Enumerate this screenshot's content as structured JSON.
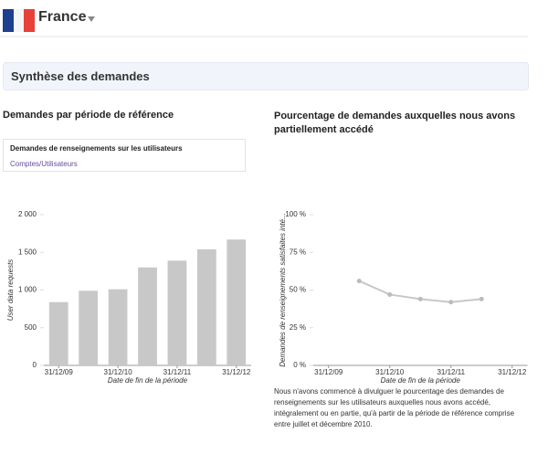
{
  "header": {
    "country": "France"
  },
  "section_title": "Synthèse des demandes",
  "chart_data": [
    {
      "type": "bar",
      "title": "Demandes par période de référence",
      "selector": {
        "title": "Demandes de renseignements sur les utilisateurs",
        "link": "Comptes/Utilisateurs"
      },
      "y_label": "User data requests",
      "x_label": "Date de fin de la période",
      "categories": [
        "31/12/09",
        null,
        "31/12/10",
        null,
        "31/12/11",
        null,
        "31/12/12"
      ],
      "values": [
        840,
        990,
        1010,
        1300,
        1390,
        1540,
        1670
      ],
      "color": "#c8c8c8",
      "ylim": [
        0,
        2000
      ],
      "yticks": [
        0,
        500,
        {
          "value": 1000,
          "label": "1 000"
        },
        {
          "value": 1500,
          "label": "1 500"
        },
        {
          "value": 2000,
          "label": "2 000"
        }
      ],
      "grid": false
    },
    {
      "type": "line",
      "title": "Pourcentage de demandes auxquelles nous avons partiellement accédé",
      "y_label": "Demandes de renseignements satisfaites inté...",
      "x_label": "Date de fin de la période",
      "categories": [
        "31/12/09",
        null,
        "31/12/10",
        null,
        "31/12/11",
        null,
        "31/12/12"
      ],
      "values": [
        null,
        56,
        47,
        44,
        42,
        44,
        null
      ],
      "color": "#c8c8c8",
      "ylim": [
        0,
        100
      ],
      "yticks": [
        {
          "value": 0,
          "label": "0 %"
        },
        {
          "value": 25,
          "label": "25 %"
        },
        {
          "value": 50,
          "label": "50 %"
        },
        {
          "value": 75,
          "label": "75 %"
        },
        {
          "value": 100,
          "label": "100 %"
        }
      ],
      "grid": false,
      "note": "Nous n'avons commencé à divulguer le pourcentage des demandes de renseignements sur les utilisateurs auxquelles nous avons accédé, intégralement ou en partie, qu'à partir de la période de référence comprise entre juillet et décembre 2010."
    }
  ]
}
